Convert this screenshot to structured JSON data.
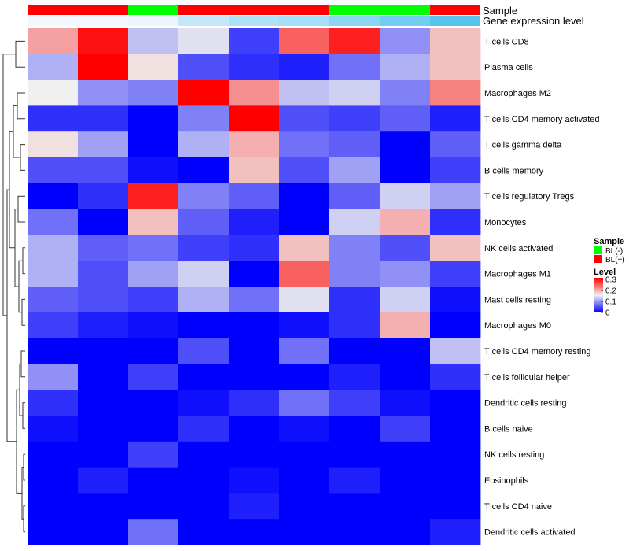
{
  "chart_data": {
    "type": "heatmap",
    "annotation_labels": {
      "sample": "Sample",
      "expression": "Gene expression level"
    },
    "sample_groups": [
      "BL(+)",
      "BL(+)",
      "BL(-)",
      "BL(+)",
      "BL(+)",
      "BL(+)",
      "BL(-)",
      "BL(-)",
      "BL(+)"
    ],
    "expression_levels": [
      0.05,
      0.05,
      0.06,
      0.14,
      0.18,
      0.2,
      0.25,
      0.3,
      0.35
    ],
    "rows": [
      "T cells CD8",
      "Plasma cells",
      "Macrophages M2",
      "T cells CD4 memory activated",
      "T cells gamma delta",
      "B cells memory",
      "T cells regulatory  Tregs",
      "Monocytes",
      "NK cells activated",
      "Macrophages M1",
      "Mast cells resting",
      "Macrophages M0",
      "T cells CD4 memory resting",
      "T cells follicular helper",
      "Dendritic cells resting",
      "B cells naive",
      "NK cells resting",
      "Eosinophils",
      "T cells CD4 naive",
      "Dendritic cells activated"
    ],
    "values": [
      [
        0.2,
        0.29,
        0.12,
        0.14,
        0.04,
        0.24,
        0.28,
        0.09,
        0.18
      ],
      [
        0.11,
        0.33,
        0.16,
        0.05,
        0.03,
        0.02,
        0.07,
        0.11,
        0.18
      ],
      [
        0.15,
        0.09,
        0.08,
        0.32,
        0.21,
        0.12,
        0.13,
        0.08,
        0.22
      ],
      [
        0.03,
        0.03,
        0.0,
        0.08,
        0.33,
        0.05,
        0.04,
        0.06,
        0.02
      ],
      [
        0.16,
        0.1,
        0.0,
        0.11,
        0.19,
        0.07,
        0.06,
        0.0,
        0.06
      ],
      [
        0.05,
        0.05,
        0.01,
        0.0,
        0.18,
        0.05,
        0.1,
        0.0,
        0.04
      ],
      [
        0.0,
        0.03,
        0.28,
        0.08,
        0.06,
        0.0,
        0.06,
        0.13,
        0.1
      ],
      [
        0.07,
        0.0,
        0.18,
        0.06,
        0.02,
        0.0,
        0.13,
        0.19,
        0.03
      ],
      [
        0.11,
        0.06,
        0.07,
        0.04,
        0.03,
        0.18,
        0.08,
        0.05,
        0.18
      ],
      [
        0.11,
        0.05,
        0.1,
        0.13,
        0.0,
        0.24,
        0.08,
        0.09,
        0.04
      ],
      [
        0.06,
        0.05,
        0.04,
        0.11,
        0.07,
        0.14,
        0.03,
        0.13,
        0.01
      ],
      [
        0.04,
        0.02,
        0.01,
        0.0,
        0.0,
        0.01,
        0.03,
        0.19,
        0.0
      ],
      [
        0.0,
        0.0,
        0.0,
        0.05,
        0.0,
        0.07,
        0.0,
        0.0,
        0.12
      ],
      [
        0.09,
        0.0,
        0.04,
        0.0,
        0.0,
        0.0,
        0.02,
        0.0,
        0.03
      ],
      [
        0.03,
        0.0,
        0.0,
        0.01,
        0.03,
        0.07,
        0.04,
        0.01,
        0.0
      ],
      [
        0.01,
        0.0,
        0.0,
        0.03,
        0.0,
        0.01,
        0.0,
        0.04,
        0.0
      ],
      [
        0.0,
        0.0,
        0.04,
        0.0,
        0.0,
        0.0,
        0.0,
        0.0,
        0.0
      ],
      [
        0.0,
        0.02,
        0.0,
        0.0,
        0.01,
        0.0,
        0.02,
        0.0,
        0.0
      ],
      [
        0.0,
        0.0,
        0.0,
        0.0,
        0.02,
        0.0,
        0.0,
        0.0,
        0.0
      ],
      [
        0.0,
        0.0,
        0.07,
        0.0,
        0.0,
        0.0,
        0.0,
        0.0,
        0.02
      ]
    ],
    "color_scale": {
      "min": 0,
      "mid": 0.15,
      "max": 0.3,
      "low": "#0000ff",
      "middle": "#f0f0f0",
      "high": "#ff0000"
    },
    "legend": {
      "sample_title": "Sample",
      "sample_entries": [
        {
          "label": "BL(-)",
          "color": "#00ff00"
        },
        {
          "label": "BL(+)",
          "color": "#ff0000"
        }
      ],
      "level_title": "Level",
      "level_ticks": [
        "0.3",
        "0.2",
        "0.1",
        "0"
      ]
    },
    "expression_colors": {
      "low": "#f2f8fc",
      "high": "#58c4ee"
    },
    "dendrogram": "left"
  }
}
